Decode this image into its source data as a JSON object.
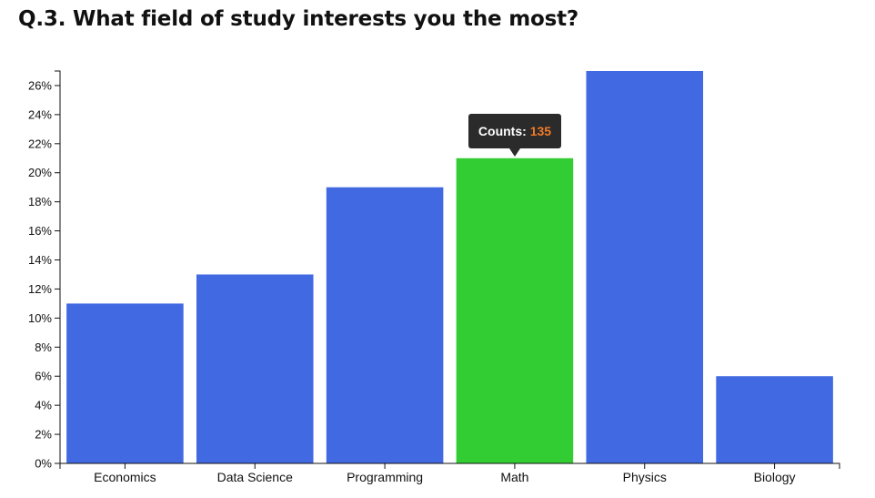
{
  "title": "Q.3. What field of study interests you the most?",
  "chart_data": {
    "type": "bar",
    "categories": [
      "Economics",
      "Data Science",
      "Programming",
      "Math",
      "Physics",
      "Biology"
    ],
    "values": [
      11,
      13,
      19,
      21,
      27,
      6
    ],
    "value_unit": "%",
    "ylim": [
      0,
      27
    ],
    "yticks": [
      0,
      2,
      4,
      6,
      8,
      10,
      12,
      14,
      16,
      18,
      20,
      22,
      24,
      26
    ],
    "ytick_labels": [
      "0%",
      "2%",
      "4%",
      "6%",
      "8%",
      "10%",
      "12%",
      "14%",
      "16%",
      "18%",
      "20%",
      "22%",
      "24%",
      "26%"
    ],
    "xlabel": "",
    "ylabel": "",
    "grid": false,
    "bar_color": "#4169e1",
    "highlight_color": "#32cd32",
    "highlight_index": 3,
    "tooltip": {
      "label": "Counts:",
      "value": "135",
      "label_color": "#ffffff",
      "value_color": "#f07a28",
      "background": "#2b2b2b"
    }
  }
}
